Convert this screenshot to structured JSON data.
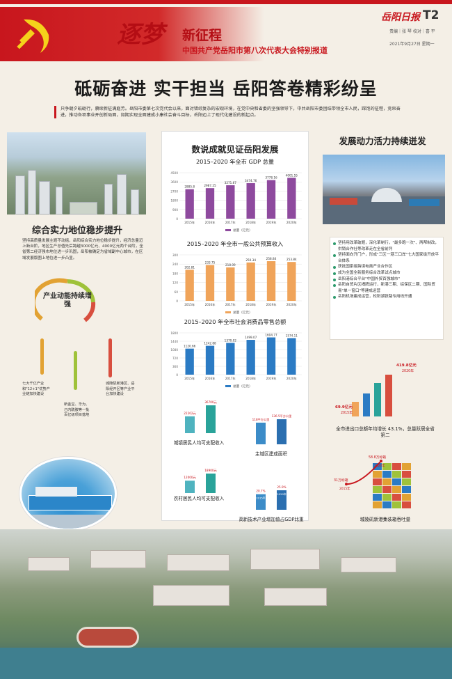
{
  "header": {
    "dream": "逐梦",
    "new_journey": "新征程",
    "subtitle": "中国共产党岳阳市第八次代表大会特别报道",
    "paper": "岳阳日报",
    "page": "T2",
    "editors": "责编｜张 琴  校对｜喜 平",
    "date": "2021年9月27日  星期一"
  },
  "headline": "砥砺奋进  实干担当  岳阳答卷精彩纷呈",
  "intro": "只争朝夕砥砺行，赓续新征满庭芳。岳阳市委第七次党代会以来，面对错综复杂的宏观环境，在党中央和省委的坚强领导下，中共岳阳市委团结带领全市人民，踩饱的征程，竞帛奋进，推动各项事业开创新局面，如期实现全面建成小康社会奋斗目标，岳阳迈上了现代化建设的新起点。",
  "left": {
    "title": "综合实力地位稳步提升",
    "text": "坚持高质量发展主题不动摇，岳阳综合实力地位稳步提升，经济总量迈上新台阶，地区生产总值先后跨越3000亿元、4000亿元两个台阶，全省第二经济强市地位进一步巩固，岳阳被确定为省域副中心城市，在区域发展版图上地位进一步凸显。",
    "ring_title": "产业动能持续增强",
    "indicators": [
      {
        "text": "七大千亿产业和\"12+1\"优势产业链加快建设",
        "color": "#e2a233"
      },
      {
        "text": "新金宝、华为、己内酰胺等一批百亿级项目落地",
        "color": "#9fc23a"
      },
      {
        "text": "城陵矶新港区、岳阳经开区等产业平台加快建设",
        "color": "#d84f3f"
      }
    ]
  },
  "mid": {
    "title": "数说成就见证岳阳发展",
    "gdp_title": "2015–2020 年全市 GDP 总量",
    "rev_title": "2015–2020 年全市一般公共预算收入",
    "retail_title": "2015–2020 年全市社会消费品零售总额",
    "urban_income": "城镇居民人均可支配收入",
    "urban_area": "主城区建成面积",
    "rural_income": "农村居民人均可支配收入",
    "hitech": "高新技术产业增加值占GDP比重"
  },
  "right": {
    "title": "发展动力活力持续迸发",
    "items": [
      "坚持用改革破题，深化革制行，\"最多跑一次\"、两帮制改，供销合作社等改革走在全省前列",
      "坚持面向开门户，形成\"三区一港三口岸\"七大国家级开放平台体系",
      "获批国家级跨境电商产业合作区",
      "成为全国全新服务综合改革试点城市",
      "岳阳港综合平台\"中国外贸百强城市\"",
      "岳阳自贸片区揭牌运行，新港三期、综保区二期、国际贸易\"单一窗口\"等建成运营",
      "岳阳机场建成运营，松阳湖铁路专用线开通"
    ],
    "trade_caption": "全市进出口总额年均增长 43.1%，总量跃居全省第二",
    "port_caption": "城陵矶新港集装箱吞吐量"
  },
  "chart_data": [
    {
      "type": "bar",
      "title": "2015–2020 年全市 GDP 总量",
      "categories": [
        "2015年",
        "2016年",
        "2017年",
        "2018年",
        "2019年",
        "2020年"
      ],
      "values": [
        2885.8,
        2987.25,
        3271.67,
        3474.76,
        3778.16,
        4001.55
      ],
      "series": [
        {
          "name": "总量（亿元）",
          "values": [
            2885.8,
            2987.25,
            3271.67,
            3474.76,
            3778.16,
            4001.55
          ]
        }
      ],
      "ylim": [
        0,
        4500
      ]
    },
    {
      "type": "bar",
      "title": "2015–2020 年全市一般公共预算收入",
      "categories": [
        "2015年",
        "2016年",
        "2017年",
        "2018年",
        "2019年",
        "2020年"
      ],
      "values": [
        202.81,
        233.75,
        218.09,
        250.34,
        258.84,
        253.84
      ],
      "series": [
        {
          "name": "总量（亿元）",
          "values": [
            202.81,
            233.75,
            218.09,
            250.34,
            258.84,
            253.84
          ]
        }
      ],
      "ylim": [
        0,
        300
      ]
    },
    {
      "type": "bar",
      "title": "2015–2020 年全市社会消费品零售总额",
      "categories": [
        "2015年",
        "2016年",
        "2017年",
        "2018年",
        "2019年",
        "2020年"
      ],
      "values": [
        1120.66,
        1242.88,
        1370.02,
        1499.07,
        1604.77,
        1574.11
      ],
      "series": [
        {
          "name": "总量（亿元）",
          "values": [
            1120.66,
            1242.88,
            1370.02,
            1499.07,
            1604.77,
            1574.11
          ]
        }
      ],
      "ylim": [
        0,
        1800
      ]
    },
    {
      "type": "bar",
      "title": "城镇居民人均可支配收入",
      "values": [
        22202,
        36700
      ],
      "labels": [
        "22202元",
        "36700元"
      ]
    },
    {
      "type": "bar",
      "title": "主城区建成面积",
      "values": [
        118,
        136.5
      ],
      "labels": [
        "118平方公里",
        "136.5平方公里"
      ]
    },
    {
      "type": "bar",
      "title": "农村居民人均可支配收入",
      "values": [
        12000,
        18900
      ],
      "labels": [
        "12000元",
        "18900元"
      ]
    },
    {
      "type": "bar",
      "title": "高新技术产业增加值占GDP比重",
      "categories": [
        "2015年",
        "2020年"
      ],
      "values": [
        20.7,
        25.9
      ],
      "labels": [
        "20.7%",
        "25.9%"
      ]
    },
    {
      "type": "bar",
      "title": "全市进出口总额",
      "categories": [
        "2015年",
        "2020年"
      ],
      "values": [
        69.9,
        419.8
      ],
      "labels": [
        "69.9亿元",
        "419.8亿元"
      ]
    },
    {
      "type": "line",
      "title": "城陵矶新港集装箱吞吐量",
      "categories": [
        "2015年",
        "2020年"
      ],
      "values": [
        31,
        58.8
      ],
      "labels": [
        "31万标箱",
        "58.8万标箱"
      ]
    }
  ]
}
